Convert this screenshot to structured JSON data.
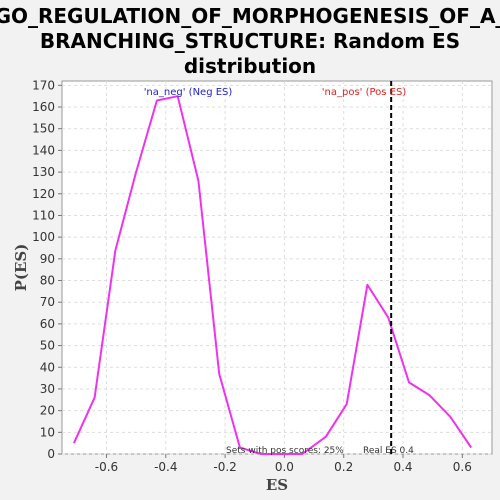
{
  "chart_data": {
    "type": "line",
    "title_lines": [
      "GO_REGULATION_OF_MORPHOGENESIS_OF_A_",
      "BRANCHING_STRUCTURE: Random ES",
      "distribution"
    ],
    "xlabel": "ES",
    "ylabel": "P(ES)",
    "xlim": [
      -0.75,
      0.7
    ],
    "ylim": [
      0,
      172
    ],
    "xticks": [
      -0.6,
      -0.4,
      -0.2,
      0.0,
      0.2,
      0.4,
      0.6
    ],
    "xtick_labels": [
      "-0.6",
      "-0.4",
      "-0.2",
      "0.0",
      "0.2",
      "0.4",
      "0.6"
    ],
    "yticks": [
      0,
      10,
      20,
      30,
      40,
      50,
      60,
      70,
      80,
      90,
      100,
      110,
      120,
      130,
      140,
      150,
      160,
      170
    ],
    "ytick_labels": [
      "0",
      "10",
      "20",
      "30",
      "40",
      "50",
      "60",
      "70",
      "80",
      "90",
      "100",
      "110",
      "120",
      "130",
      "140",
      "150",
      "160",
      "170"
    ],
    "grid": true,
    "series": [
      {
        "color": "#ee33ee",
        "x": [
          -0.71,
          -0.64,
          -0.57,
          -0.5,
          -0.43,
          -0.36,
          -0.29,
          -0.22,
          -0.15,
          -0.08,
          -0.01,
          0.06,
          0.14,
          0.21,
          0.28,
          0.35,
          0.42,
          0.49,
          0.56,
          0.63
        ],
        "y": [
          5,
          26,
          94,
          130,
          163,
          165,
          126,
          37,
          3,
          0,
          0,
          0,
          8,
          23,
          78,
          63,
          33,
          27,
          17,
          3
        ]
      }
    ],
    "vline": {
      "x": 0.36,
      "style": "dashed",
      "color": "#000000"
    },
    "legend": {
      "neg_label": "'na_neg' (Neg ES)",
      "neg_color": "#2222cc",
      "pos_label": "'na_pos' (Pos ES)",
      "pos_color": "#dd2222"
    },
    "annotations": {
      "pos_scores": "Sets with pos scores: 25%",
      "real_es": "Real ES 0.4"
    }
  }
}
